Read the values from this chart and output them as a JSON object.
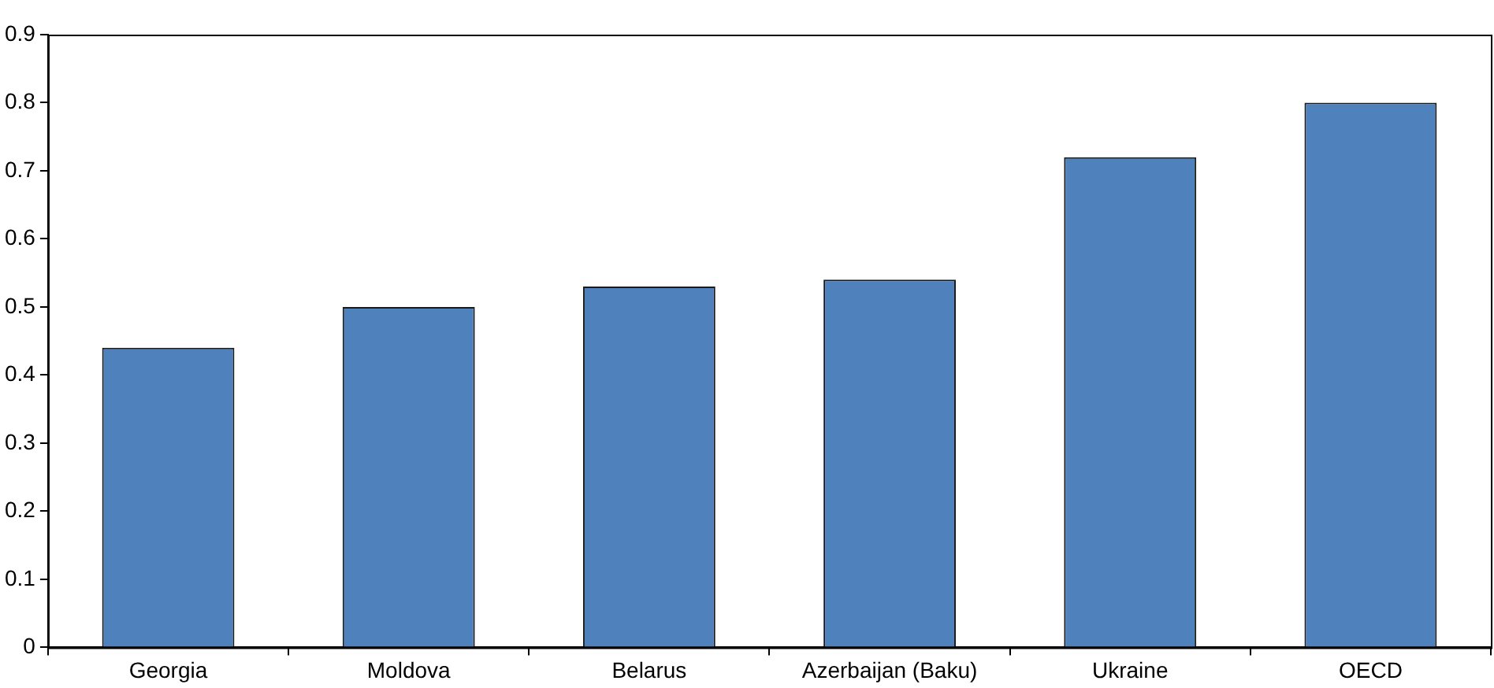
{
  "chart_data": {
    "type": "bar",
    "categories": [
      "Georgia",
      "Moldova",
      "Belarus",
      "Azerbaijan (Baku)",
      "Ukraine",
      "OECD"
    ],
    "values": [
      0.44,
      0.5,
      0.53,
      0.54,
      0.72,
      0.8
    ],
    "color": "#4f81bd",
    "ylim": [
      0,
      0.9
    ],
    "yticks": [
      0,
      0.1,
      0.2,
      0.3,
      0.4,
      0.5,
      0.6,
      0.7,
      0.8,
      0.9
    ],
    "grid": false,
    "legend": false
  }
}
